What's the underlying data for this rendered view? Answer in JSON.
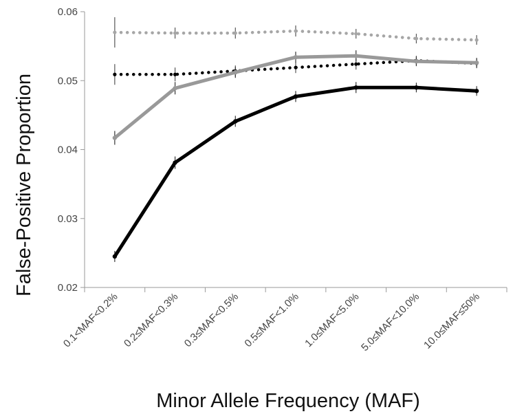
{
  "chart_data": {
    "type": "line",
    "title": "",
    "xlabel": "Minor Allele Frequency (MAF)",
    "ylabel": "False-Positive Proportion",
    "categories": [
      "0.1<MAF<0.2%",
      "0.2≤MAF<0.3%",
      "0.3≤MAF<0.5%",
      "0.5≤MAF<1.0%",
      "1.0≤MAF<5.0%",
      "5.0≤MAF<10.0%",
      "10.0≤MAF≤50%"
    ],
    "ylim": [
      0.02,
      0.06
    ],
    "yticks": [
      "0.02",
      "0.03",
      "0.04",
      "0.05",
      "0.06"
    ],
    "grid": false,
    "legend": "none",
    "series": [
      {
        "color": "#a6a6a6",
        "line": "dotted",
        "values": [
          0.057,
          0.0569,
          0.0569,
          0.0572,
          0.0568,
          0.0561,
          0.0559
        ],
        "errors": [
          0.0022,
          0.0008,
          0.0008,
          0.0008,
          0.0007,
          0.0007,
          0.0007
        ]
      },
      {
        "color": "#000000",
        "line": "dotted",
        "values": [
          0.0509,
          0.0509,
          0.0514,
          0.0519,
          0.0524,
          0.0529,
          0.0525
        ],
        "errors": [
          0.0015,
          0.001,
          0.0008,
          0.0008,
          0.0008,
          0.0007,
          0.0007
        ]
      },
      {
        "color": "#999999",
        "line": "solid",
        "values": [
          0.0417,
          0.0489,
          0.0512,
          0.0534,
          0.0536,
          0.0528,
          0.0526
        ],
        "errors": [
          0.001,
          0.0009,
          0.0008,
          0.0008,
          0.0008,
          0.0007,
          0.0007
        ]
      },
      {
        "color": "#000000",
        "line": "solid",
        "values": [
          0.0245,
          0.0381,
          0.0441,
          0.0477,
          0.049,
          0.049,
          0.0485
        ],
        "errors": [
          0.0008,
          0.0009,
          0.0008,
          0.0008,
          0.0008,
          0.0007,
          0.0007
        ]
      }
    ]
  }
}
